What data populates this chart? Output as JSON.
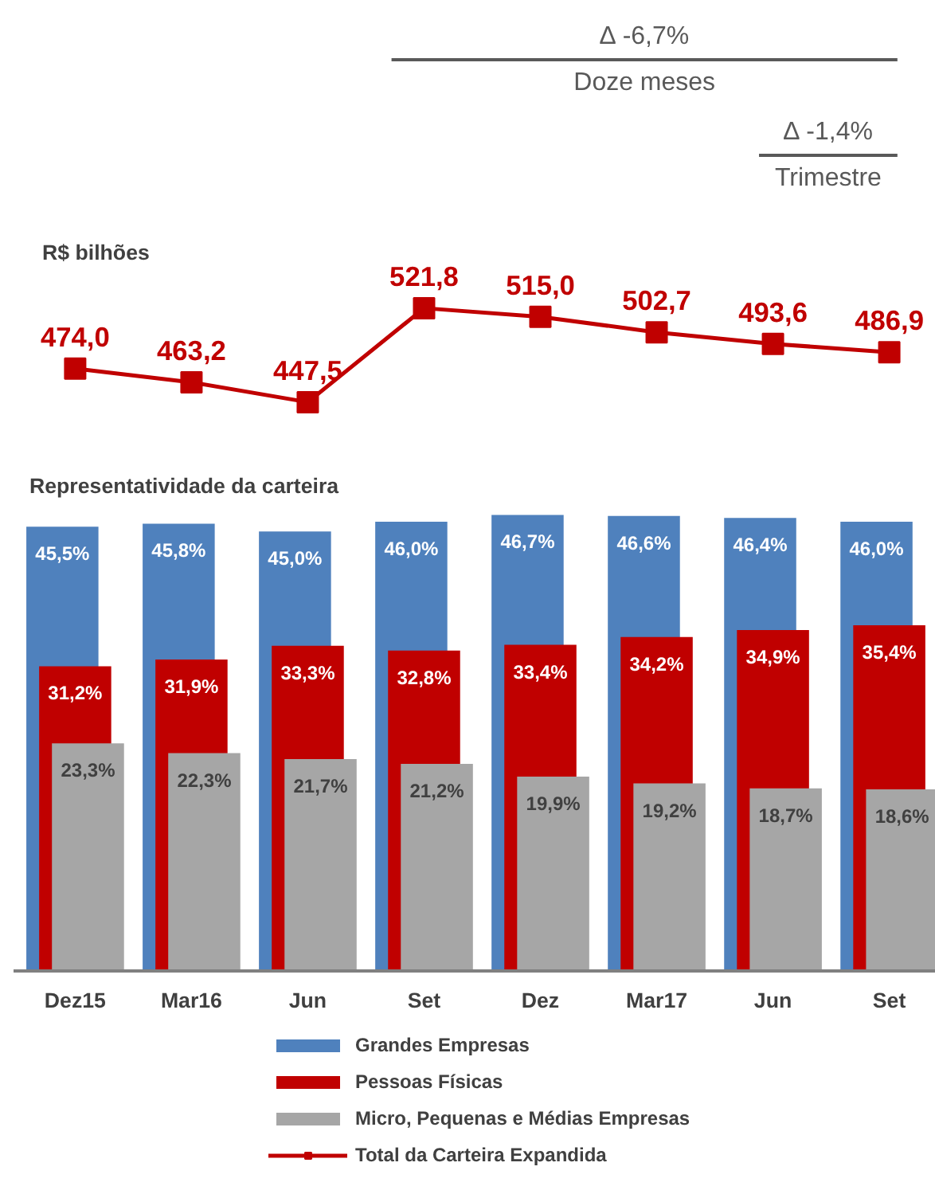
{
  "chart_data": [
    {
      "type": "line",
      "categories": [
        null,
        null,
        null,
        null,
        null,
        null,
        null,
        null
      ],
      "tick_labels": false,
      "marker": "square",
      "line_style": "solid",
      "series": [
        {
          "name": "Total da Carteira Expandida",
          "color": "#c00000",
          "values": [
            474.0,
            463.2,
            447.5,
            521.8,
            515.0,
            502.7,
            493.6,
            486.9
          ],
          "value_labels": [
            "474,0",
            "463,2",
            "447,5",
            "521,8",
            "515,0",
            "502,7",
            "493,6",
            "486,9"
          ]
        }
      ],
      "annotations": [
        "R$ bilhões",
        "∆ -6,7%",
        "Doze meses",
        "∆ -1,4%",
        "Trimestre"
      ]
    },
    {
      "type": "bar",
      "title": "Representatividade da carteira",
      "categories": [
        "Dez15",
        "Mar16",
        "Jun",
        "Set",
        "Dez",
        "Mar17",
        "Jun",
        "Set"
      ],
      "tick_labels": "x",
      "legend": "bottom",
      "series": [
        {
          "name": "Grandes Empresas",
          "color": "#4f81bd",
          "values": [
            45.5,
            45.8,
            45.0,
            46.0,
            46.7,
            46.6,
            46.4,
            46.0
          ],
          "value_labels": [
            "45,5%",
            "45,8%",
            "45,0%",
            "46,0%",
            "46,7%",
            "46,6%",
            "46,4%",
            "46,0%"
          ]
        },
        {
          "name": "Pessoas Físicas",
          "color": "#c00000",
          "values": [
            31.2,
            31.9,
            33.3,
            32.8,
            33.4,
            34.2,
            34.9,
            35.4
          ],
          "value_labels": [
            "31,2%",
            "31,9%",
            "33,3%",
            "32,8%",
            "33,4%",
            "34,2%",
            "34,9%",
            "35,4%"
          ]
        },
        {
          "name": "Micro, Pequenas e Médias Empresas",
          "color": "#a6a6a6",
          "values": [
            23.3,
            22.3,
            21.7,
            21.2,
            19.9,
            19.2,
            18.7,
            18.6
          ],
          "value_labels": [
            "23,3%",
            "22,3%",
            "21,7%",
            "21,2%",
            "19,9%",
            "19,2%",
            "18,7%",
            "18,6%"
          ]
        }
      ]
    }
  ]
}
